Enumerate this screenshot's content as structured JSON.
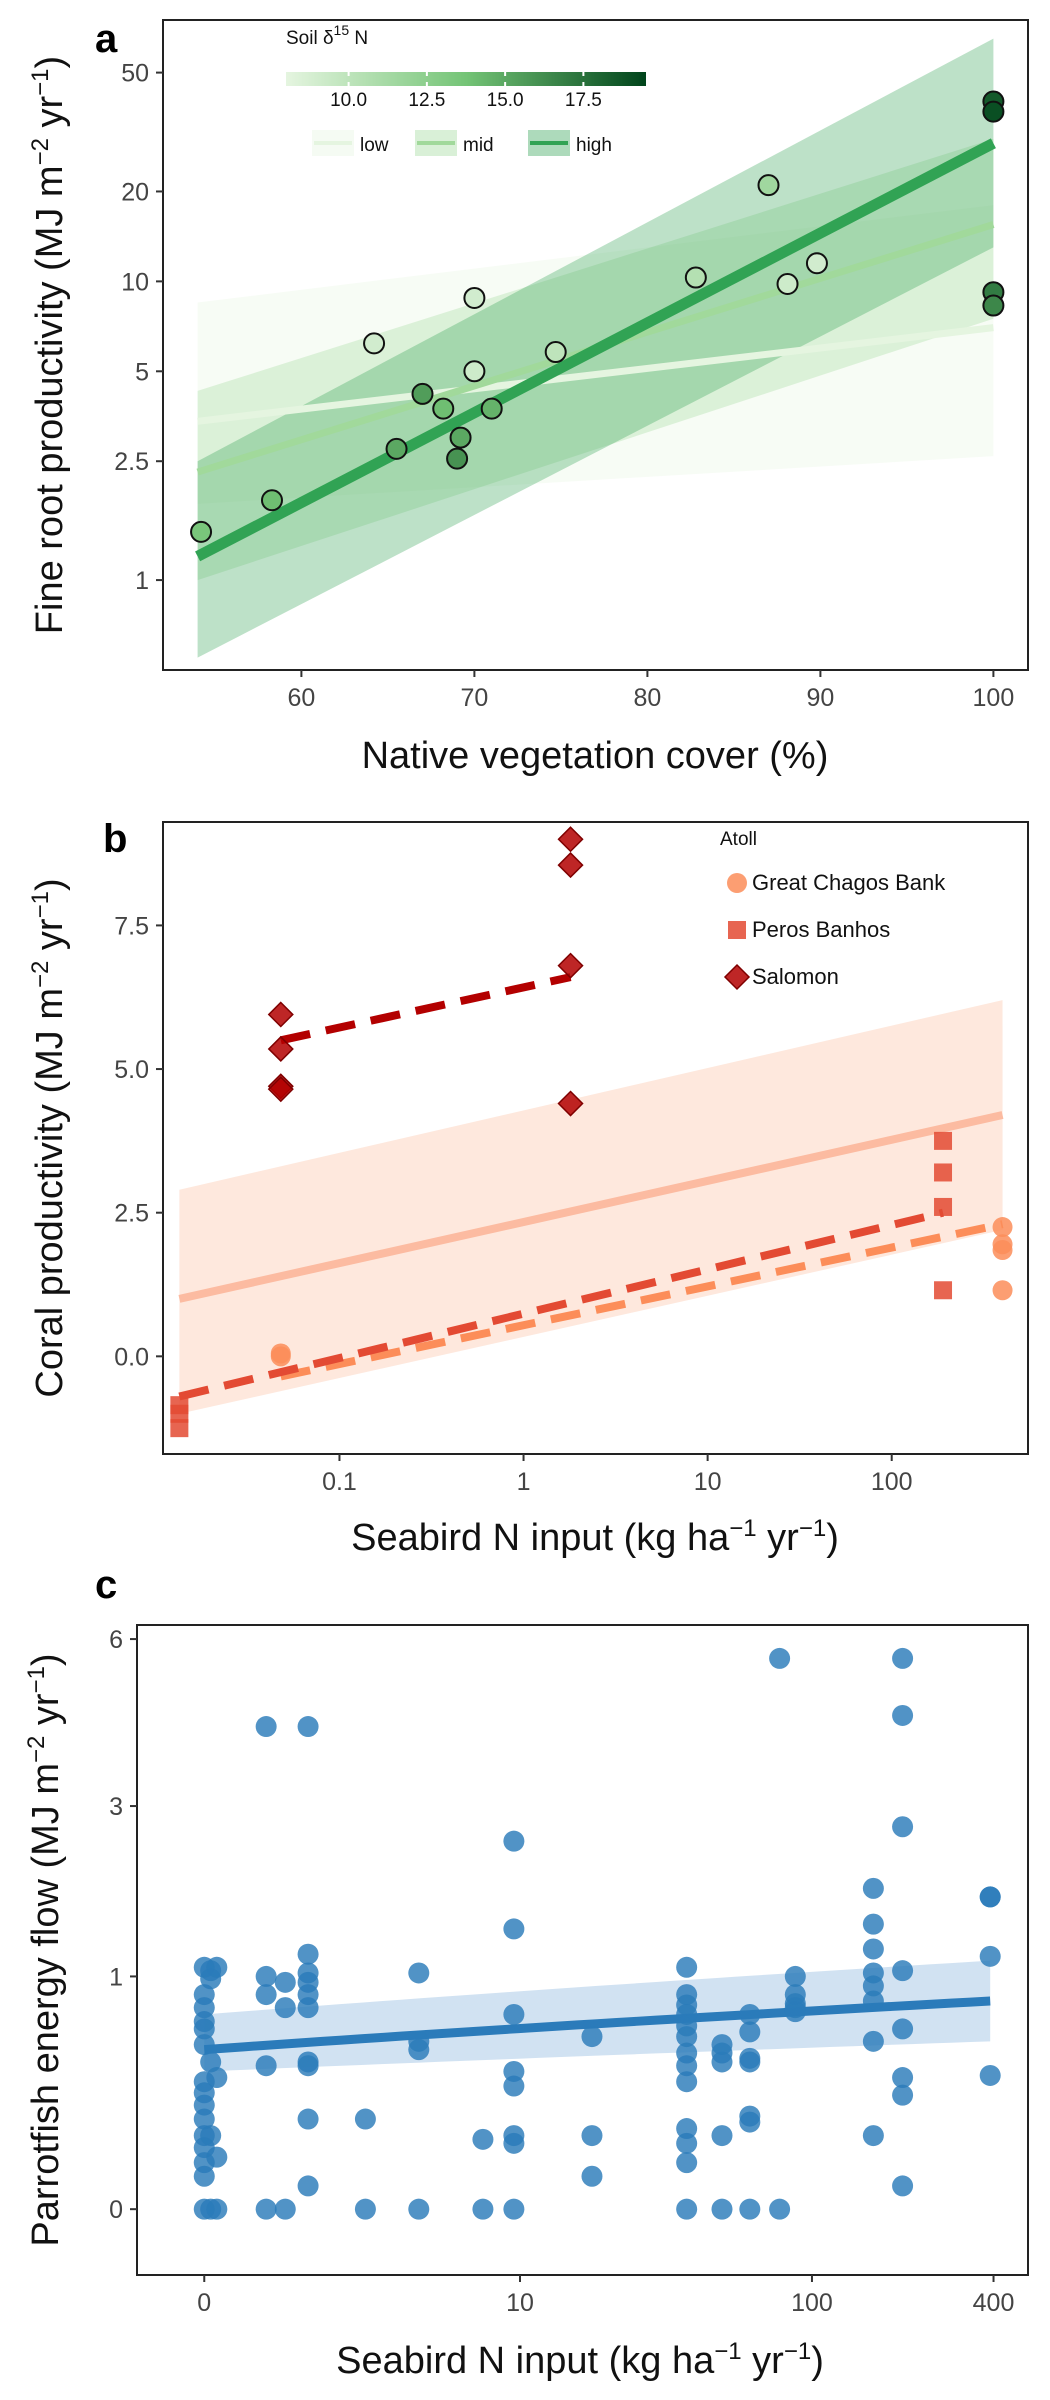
{
  "chart_data": [
    {
      "panel": "a",
      "type": "scatter",
      "xlabel": "Native vegetation cover (%)",
      "ylabel": {
        "text": "Fine root productivity (MJ m",
        "sup1": "−2",
        "mid": " yr",
        "sup2": "−1",
        "end": ")"
      },
      "xlim": [
        52,
        102
      ],
      "ylim": [
        0.5,
        75
      ],
      "yscale": "log",
      "grid": false,
      "x_ticks": [
        60,
        70,
        80,
        90,
        100
      ],
      "x_tick_labels": [
        "60",
        "70",
        "80",
        "90",
        "100"
      ],
      "y_ticks": [
        1,
        2.5,
        5,
        10,
        20,
        50
      ],
      "y_tick_labels": [
        "1",
        "2.5",
        "5",
        "10",
        "20",
        "50"
      ],
      "colorbar": {
        "title": {
          "text": "Soil δ",
          "sup": "15",
          "end": " N"
        },
        "ticks": [
          10.0,
          12.5,
          15.0,
          17.5
        ],
        "tick_labels": [
          "10.0",
          "12.5",
          "15.0",
          "17.5"
        ],
        "range": [
          8.0,
          19.5
        ],
        "colors": [
          "#e5f5e0",
          "#00441b"
        ]
      },
      "line_legend": [
        {
          "label": "low",
          "color": "#e5f5e0"
        },
        {
          "label": "mid",
          "color": "#a1d99b"
        },
        {
          "label": "high",
          "color": "#31a354"
        }
      ],
      "lines": [
        {
          "name": "low",
          "color": "#e5f5e0",
          "x": [
            54,
            100
          ],
          "y": [
            3.4,
            7.0
          ],
          "band_lower": [
            1.8,
            2.6
          ],
          "band_upper": [
            8.5,
            18
          ]
        },
        {
          "name": "mid",
          "color": "#a1d99b",
          "x": [
            54,
            100
          ],
          "y": [
            2.3,
            15.5
          ],
          "band_lower": [
            1.0,
            7.5
          ],
          "band_upper": [
            4.3,
            30
          ]
        },
        {
          "name": "high",
          "color": "#31a354",
          "x": [
            54,
            100
          ],
          "y": [
            1.2,
            29
          ],
          "band_lower": [
            0.55,
            13
          ],
          "band_upper": [
            2.5,
            65
          ]
        }
      ],
      "points": [
        {
          "x": 54.2,
          "y": 1.45,
          "d15n": 13.5
        },
        {
          "x": 58.3,
          "y": 1.85,
          "d15n": 14.0
        },
        {
          "x": 64.2,
          "y": 6.2,
          "d15n": 9.0
        },
        {
          "x": 65.5,
          "y": 2.75,
          "d15n": 15.0
        },
        {
          "x": 67.0,
          "y": 4.2,
          "d15n": 15.5
        },
        {
          "x": 68.2,
          "y": 3.75,
          "d15n": 14.0
        },
        {
          "x": 69.0,
          "y": 2.55,
          "d15n": 16.0
        },
        {
          "x": 69.2,
          "y": 3.0,
          "d15n": 15.0
        },
        {
          "x": 70.0,
          "y": 8.8,
          "d15n": 9.0
        },
        {
          "x": 70.0,
          "y": 5.0,
          "d15n": 9.2
        },
        {
          "x": 71.0,
          "y": 3.75,
          "d15n": 14.5
        },
        {
          "x": 74.7,
          "y": 5.8,
          "d15n": 10.0
        },
        {
          "x": 82.8,
          "y": 10.3,
          "d15n": 10.5
        },
        {
          "x": 87.0,
          "y": 21,
          "d15n": 11.5
        },
        {
          "x": 88.1,
          "y": 9.8,
          "d15n": 9.2
        },
        {
          "x": 89.8,
          "y": 11.5,
          "d15n": 9.0
        },
        {
          "x": 100,
          "y": 40,
          "d15n": 18.5
        },
        {
          "x": 100,
          "y": 37,
          "d15n": 19.0
        },
        {
          "x": 100,
          "y": 9.2,
          "d15n": 17.0
        },
        {
          "x": 100,
          "y": 8.3,
          "d15n": 16.5
        }
      ]
    },
    {
      "panel": "b",
      "type": "scatter",
      "xlabel": {
        "text": "Seabird N input (kg ha",
        "sup1": "−1",
        "mid": " yr",
        "sup2": "−1",
        "end": ")"
      },
      "ylabel": {
        "text": "Coral productivity (MJ m",
        "sup1": "−2",
        "mid": " yr",
        "sup2": "−1",
        "end": ")"
      },
      "xscale": "log",
      "xlim": [
        0.011,
        550
      ],
      "ylim": [
        -1.7,
        9.3
      ],
      "grid": false,
      "x_ticks": [
        0.1,
        1,
        10,
        100
      ],
      "x_tick_labels": [
        "0.1",
        "1",
        "10",
        "100"
      ],
      "y_ticks": [
        0.0,
        2.5,
        5.0,
        7.5
      ],
      "y_tick_labels": [
        "0.0",
        "2.5",
        "5.0",
        "7.5"
      ],
      "legend": {
        "title": "Atoll",
        "entries": [
          {
            "label": "Great Chagos Bank",
            "shape": "circle",
            "color": "#fc8d59"
          },
          {
            "label": "Peros Banhos",
            "shape": "square",
            "color": "#e34a33"
          },
          {
            "label": "Salomon",
            "shape": "diamond",
            "color": "#b30000"
          }
        ]
      },
      "overall": {
        "x": [
          0.0135,
          400
        ],
        "y": [
          1.0,
          4.2
        ],
        "band_lower": [
          -1.0,
          2.2
        ],
        "band_upper": [
          2.9,
          6.2
        ],
        "color": "#fcbba1"
      },
      "lines": [
        {
          "name": "Great Chagos Bank",
          "color": "#fc8d59",
          "dashed": true,
          "x": [
            0.048,
            400
          ],
          "y": [
            -0.35,
            2.3
          ]
        },
        {
          "name": "Peros Banhos",
          "color": "#e34a33",
          "dashed": true,
          "x": [
            0.0135,
            190
          ],
          "y": [
            -0.7,
            2.5
          ]
        },
        {
          "name": "Salomon",
          "color": "#b30000",
          "dashed": true,
          "x": [
            0.048,
            1.8
          ],
          "y": [
            5.5,
            6.6
          ]
        }
      ],
      "points": [
        {
          "atoll": "Great Chagos Bank",
          "x": 0.048,
          "y": 0.0
        },
        {
          "atoll": "Great Chagos Bank",
          "x": 0.048,
          "y": 0.05
        },
        {
          "atoll": "Great Chagos Bank",
          "x": 400,
          "y": 2.25
        },
        {
          "atoll": "Great Chagos Bank",
          "x": 400,
          "y": 1.95
        },
        {
          "atoll": "Great Chagos Bank",
          "x": 400,
          "y": 1.85
        },
        {
          "atoll": "Great Chagos Bank",
          "x": 400,
          "y": 1.15
        },
        {
          "atoll": "Peros Banhos",
          "x": 0.0135,
          "y": -0.85
        },
        {
          "atoll": "Peros Banhos",
          "x": 0.0135,
          "y": -1.0
        },
        {
          "atoll": "Peros Banhos",
          "x": 0.0135,
          "y": -1.25
        },
        {
          "atoll": "Peros Banhos",
          "x": 190,
          "y": 3.75
        },
        {
          "atoll": "Peros Banhos",
          "x": 190,
          "y": 3.2
        },
        {
          "atoll": "Peros Banhos",
          "x": 190,
          "y": 2.6
        },
        {
          "atoll": "Peros Banhos",
          "x": 190,
          "y": 1.15
        },
        {
          "atoll": "Salomon",
          "x": 0.048,
          "y": 5.95
        },
        {
          "atoll": "Salomon",
          "x": 0.048,
          "y": 5.35
        },
        {
          "atoll": "Salomon",
          "x": 0.048,
          "y": 4.7
        },
        {
          "atoll": "Salomon",
          "x": 0.048,
          "y": 4.65
        },
        {
          "atoll": "Salomon",
          "x": 1.8,
          "y": 9.0
        },
        {
          "atoll": "Salomon",
          "x": 1.8,
          "y": 8.55
        },
        {
          "atoll": "Salomon",
          "x": 1.8,
          "y": 6.8
        },
        {
          "atoll": "Salomon",
          "x": 1.8,
          "y": 4.4
        }
      ]
    },
    {
      "panel": "c",
      "type": "scatter",
      "xlabel": {
        "text": "Seabird N input (kg ha",
        "sup1": "−1",
        "mid": " yr",
        "sup2": "−1",
        "end": ")"
      },
      "ylabel": {
        "text": "Parrotfish energy flow (MJ m",
        "sup1": "−2",
        "mid": " yr",
        "sup2": "−1",
        "end": ")"
      },
      "xscale": "log1p",
      "yscale": "sqrt",
      "xlim": [
        -0.4,
        520
      ],
      "ylim": [
        -0.08,
        6.3
      ],
      "grid": false,
      "x_ticks": [
        0,
        10,
        100,
        400
      ],
      "x_tick_labels": [
        "0",
        "10",
        "100",
        "400"
      ],
      "y_ticks": [
        0,
        1,
        3,
        6
      ],
      "y_tick_labels": [
        "0",
        "1",
        "3",
        "6"
      ],
      "line": {
        "color": "#2b7bba",
        "x": [
          0,
          390
        ],
        "y": [
          0.47,
          0.8
        ],
        "band_lower": [
          0.35,
          0.52
        ],
        "band_upper": [
          0.7,
          1.14
        ]
      },
      "points": [
        {
          "x": 0,
          "y": 1.08
        },
        {
          "x": 0,
          "y": 0.85
        },
        {
          "x": 0,
          "y": 0.75
        },
        {
          "x": 0,
          "y": 0.65
        },
        {
          "x": 0,
          "y": 0.6
        },
        {
          "x": 0,
          "y": 0.5
        },
        {
          "x": 0,
          "y": 0.3
        },
        {
          "x": 0,
          "y": 0.25
        },
        {
          "x": 0,
          "y": 0.2
        },
        {
          "x": 0,
          "y": 0.15
        },
        {
          "x": 0,
          "y": 0.1
        },
        {
          "x": 0,
          "y": 0.07
        },
        {
          "x": 0,
          "y": 0.04
        },
        {
          "x": 0,
          "y": 0.02
        },
        {
          "x": 0,
          "y": 0.0
        },
        {
          "x": 0.05,
          "y": 1.05
        },
        {
          "x": 0.05,
          "y": 0.98
        },
        {
          "x": 0.05,
          "y": 0.4
        },
        {
          "x": 0.05,
          "y": 0.1
        },
        {
          "x": 0.05,
          "y": 0.0
        },
        {
          "x": 0.1,
          "y": 1.08
        },
        {
          "x": 0.1,
          "y": 0.32
        },
        {
          "x": 0.1,
          "y": 0.05
        },
        {
          "x": 0.1,
          "y": 0.0
        },
        {
          "x": 0.6,
          "y": 4.3
        },
        {
          "x": 0.6,
          "y": 1.0
        },
        {
          "x": 0.6,
          "y": 0.85
        },
        {
          "x": 0.6,
          "y": 0.38
        },
        {
          "x": 0.6,
          "y": 0.0
        },
        {
          "x": 0.85,
          "y": 0.95
        },
        {
          "x": 0.85,
          "y": 0.75
        },
        {
          "x": 0.85,
          "y": 0.0
        },
        {
          "x": 1.2,
          "y": 4.3
        },
        {
          "x": 1.2,
          "y": 1.2
        },
        {
          "x": 1.2,
          "y": 1.03
        },
        {
          "x": 1.2,
          "y": 0.95
        },
        {
          "x": 1.2,
          "y": 0.85
        },
        {
          "x": 1.2,
          "y": 0.75
        },
        {
          "x": 1.2,
          "y": 0.4
        },
        {
          "x": 1.2,
          "y": 0.38
        },
        {
          "x": 1.2,
          "y": 0.15
        },
        {
          "x": 1.2,
          "y": 0.01
        },
        {
          "x": 2.4,
          "y": 0.15
        },
        {
          "x": 2.4,
          "y": 0.0
        },
        {
          "x": 4.1,
          "y": 1.03
        },
        {
          "x": 4.1,
          "y": 0.52
        },
        {
          "x": 4.1,
          "y": 0.47
        },
        {
          "x": 4.1,
          "y": 0.0
        },
        {
          "x": 7.3,
          "y": 0.09
        },
        {
          "x": 7.3,
          "y": 0.0
        },
        {
          "x": 9.5,
          "y": 2.5
        },
        {
          "x": 9.5,
          "y": 1.45
        },
        {
          "x": 9.5,
          "y": 0.7
        },
        {
          "x": 9.5,
          "y": 0.35
        },
        {
          "x": 9.5,
          "y": 0.28
        },
        {
          "x": 9.5,
          "y": 0.1
        },
        {
          "x": 9.5,
          "y": 0.08
        },
        {
          "x": 9.5,
          "y": 0.0
        },
        {
          "x": 18,
          "y": 0.55
        },
        {
          "x": 18,
          "y": 0.1
        },
        {
          "x": 18,
          "y": 0.02
        },
        {
          "x": 38,
          "y": 1.08
        },
        {
          "x": 38,
          "y": 0.85
        },
        {
          "x": 38,
          "y": 0.77
        },
        {
          "x": 38,
          "y": 0.7
        },
        {
          "x": 38,
          "y": 0.62
        },
        {
          "x": 38,
          "y": 0.55
        },
        {
          "x": 38,
          "y": 0.45
        },
        {
          "x": 38,
          "y": 0.38
        },
        {
          "x": 38,
          "y": 0.3
        },
        {
          "x": 38,
          "y": 0.12
        },
        {
          "x": 38,
          "y": 0.08
        },
        {
          "x": 38,
          "y": 0.04
        },
        {
          "x": 38,
          "y": 0.0
        },
        {
          "x": 50,
          "y": 0.5
        },
        {
          "x": 50,
          "y": 0.45
        },
        {
          "x": 50,
          "y": 0.4
        },
        {
          "x": 50,
          "y": 0.1
        },
        {
          "x": 50,
          "y": 0.0
        },
        {
          "x": 62,
          "y": 0.7
        },
        {
          "x": 62,
          "y": 0.58
        },
        {
          "x": 62,
          "y": 0.42
        },
        {
          "x": 62,
          "y": 0.4
        },
        {
          "x": 62,
          "y": 0.16
        },
        {
          "x": 62,
          "y": 0.14
        },
        {
          "x": 62,
          "y": 0.0
        },
        {
          "x": 78,
          "y": 5.6
        },
        {
          "x": 78,
          "y": 0.0
        },
        {
          "x": 88,
          "y": 1.0
        },
        {
          "x": 88,
          "y": 0.85
        },
        {
          "x": 88,
          "y": 0.78
        },
        {
          "x": 88,
          "y": 0.75
        },
        {
          "x": 88,
          "y": 0.72
        },
        {
          "x": 160,
          "y": 1.9
        },
        {
          "x": 160,
          "y": 1.5
        },
        {
          "x": 160,
          "y": 1.25
        },
        {
          "x": 160,
          "y": 1.03
        },
        {
          "x": 160,
          "y": 0.92
        },
        {
          "x": 160,
          "y": 0.8
        },
        {
          "x": 160,
          "y": 0.52
        },
        {
          "x": 160,
          "y": 0.1
        },
        {
          "x": 200,
          "y": 5.6
        },
        {
          "x": 200,
          "y": 4.5
        },
        {
          "x": 200,
          "y": 2.7
        },
        {
          "x": 200,
          "y": 1.05
        },
        {
          "x": 200,
          "y": 0.6
        },
        {
          "x": 200,
          "y": 0.32
        },
        {
          "x": 200,
          "y": 0.24
        },
        {
          "x": 200,
          "y": 0.01
        },
        {
          "x": 390,
          "y": 1.8
        },
        {
          "x": 390,
          "y": 1.8
        },
        {
          "x": 390,
          "y": 1.18
        },
        {
          "x": 390,
          "y": 0.33
        }
      ]
    }
  ]
}
